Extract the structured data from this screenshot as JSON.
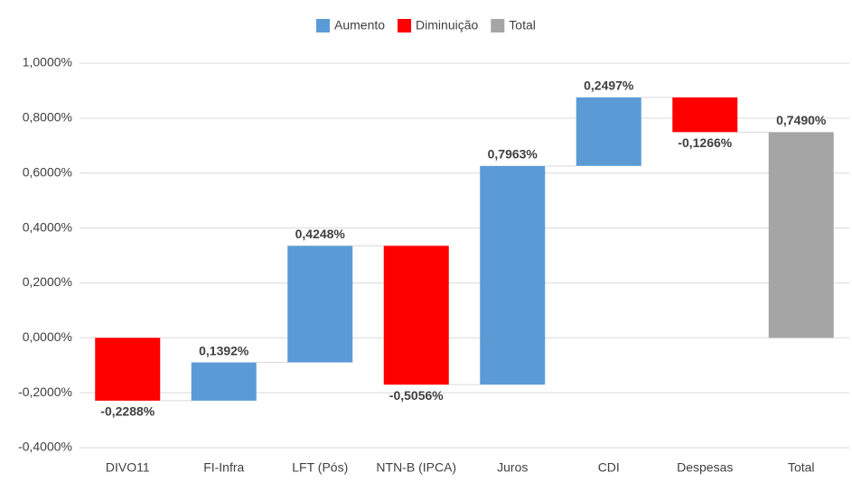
{
  "chart_data": {
    "type": "waterfall",
    "categories": [
      "DIVO11",
      "FI-Infra",
      "LFT (Pós)",
      "NTN-B (IPCA)",
      "Juros",
      "CDI",
      "Despesas",
      "Total"
    ],
    "values": [
      -0.2288,
      0.1392,
      0.4248,
      -0.5056,
      0.7963,
      0.2497,
      -0.1266,
      0.749
    ],
    "value_labels": [
      "-0,2288%",
      "0,1392%",
      "0,4248%",
      "-0,5056%",
      "0,7963%",
      "0,2497%",
      "-0,1266%",
      "0,7490%"
    ],
    "measure": [
      "relative",
      "relative",
      "relative",
      "relative",
      "relative",
      "relative",
      "relative",
      "total"
    ],
    "legend": [
      {
        "name": "Aumento",
        "color": "#5b9bd5"
      },
      {
        "name": "Diminuição",
        "color": "#ff0000"
      },
      {
        "name": "Total",
        "color": "#a5a5a5"
      }
    ],
    "legend_position": "top",
    "ylim": [
      -0.4,
      1.0
    ],
    "yticks": [
      {
        "value": -0.4,
        "label": "-0,4000%"
      },
      {
        "value": -0.2,
        "label": "-0,2000%"
      },
      {
        "value": 0,
        "label": "0,0000%"
      },
      {
        "value": 0.2,
        "label": "0,2000%"
      },
      {
        "value": 0.4,
        "label": "0,4000%"
      },
      {
        "value": 0.6,
        "label": "0,6000%"
      },
      {
        "value": 0.8,
        "label": "0,8000%"
      },
      {
        "value": 1.0,
        "label": "1,0000%"
      }
    ],
    "grid": true
  }
}
